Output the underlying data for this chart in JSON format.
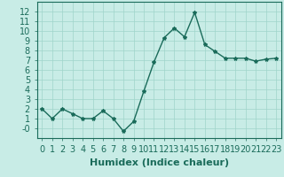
{
  "x": [
    0,
    1,
    2,
    3,
    4,
    5,
    6,
    7,
    8,
    9,
    10,
    11,
    12,
    13,
    14,
    15,
    16,
    17,
    18,
    19,
    20,
    21,
    22,
    23
  ],
  "y": [
    2,
    1,
    2,
    1.5,
    1,
    1,
    1.8,
    1,
    -0.3,
    0.7,
    3.8,
    6.8,
    9.3,
    10.3,
    9.4,
    11.9,
    8.6,
    7.9,
    7.2,
    7.2,
    7.2,
    6.9,
    7.1,
    7.2
  ],
  "line_color": "#1a6b5a",
  "marker": "*",
  "marker_color": "#1a6b5a",
  "background_color": "#c8ece6",
  "grid_color": "#9fd4ca",
  "xlabel": "Humidex (Indice chaleur)",
  "ylabel": "",
  "title": "",
  "xlim": [
    -0.5,
    23.5
  ],
  "ylim": [
    -1,
    13
  ],
  "yticks": [
    0,
    1,
    2,
    3,
    4,
    5,
    6,
    7,
    8,
    9,
    10,
    11,
    12
  ],
  "ytick_labels": [
    "-0",
    "1",
    "2",
    "3",
    "4",
    "5",
    "6",
    "7",
    "8",
    "9",
    "10",
    "11",
    "12"
  ],
  "xticks": [
    0,
    1,
    2,
    3,
    4,
    5,
    6,
    7,
    8,
    9,
    10,
    11,
    12,
    13,
    14,
    15,
    16,
    17,
    18,
    19,
    20,
    21,
    22,
    23
  ],
  "xlabel_color": "#1a6b5a",
  "tick_color": "#1a6b5a",
  "axis_color": "#1a6b5a",
  "font_size": 7,
  "marker_size": 3,
  "line_width": 1.0
}
